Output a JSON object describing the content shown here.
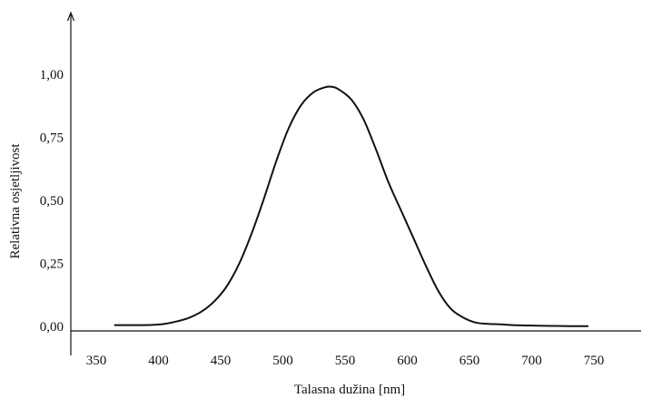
{
  "chart_data": {
    "type": "line",
    "title": "",
    "xlabel": "Talasna dužina [nm]",
    "ylabel": "Relativna osjetljivost",
    "xlim": [
      330,
      790
    ],
    "ylim": [
      -0.08,
      1.18
    ],
    "x_ticks": [
      350,
      400,
      450,
      500,
      550,
      600,
      650,
      700,
      750
    ],
    "x_tick_labels": [
      "350",
      "400",
      "450",
      "500",
      "550",
      "600",
      "650",
      "700",
      "750"
    ],
    "y_ticks": [
      0,
      0.25,
      0.5,
      0.75,
      1.0
    ],
    "y_tick_labels": [
      "0,00",
      "0,25",
      "0,50",
      "0,75",
      "1,00"
    ],
    "grid": false,
    "legend": "none",
    "line_color": "#111111",
    "series": [
      {
        "x": [
          365,
          380,
          395,
          405,
          415,
          425,
          435,
          445,
          455,
          465,
          475,
          485,
          495,
          505,
          515,
          525,
          535,
          540,
          545,
          555,
          565,
          575,
          585,
          595,
          605,
          615,
          625,
          635,
          645,
          655,
          665,
          675,
          685,
          700,
          715,
          730,
          745
        ],
        "y": [
          0.005,
          0.005,
          0.006,
          0.01,
          0.02,
          0.035,
          0.06,
          0.1,
          0.16,
          0.25,
          0.37,
          0.51,
          0.66,
          0.79,
          0.88,
          0.93,
          0.95,
          0.95,
          0.94,
          0.9,
          0.82,
          0.7,
          0.57,
          0.46,
          0.35,
          0.24,
          0.14,
          0.07,
          0.035,
          0.015,
          0.01,
          0.008,
          0.005,
          0.003,
          0.002,
          0.001,
          0.001
        ]
      }
    ]
  }
}
